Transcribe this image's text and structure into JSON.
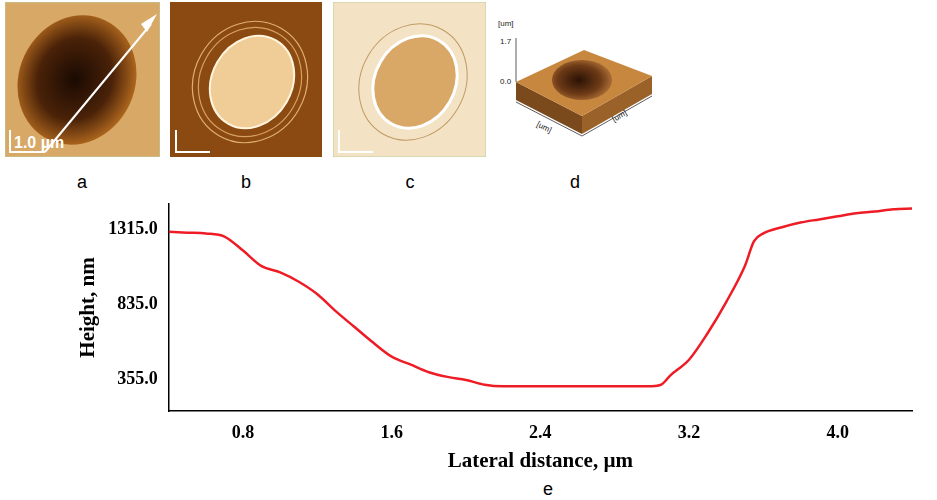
{
  "chart_data": {
    "type": "line",
    "x": [
      0.4,
      0.5,
      0.6,
      0.7,
      0.8,
      0.9,
      1.0,
      1.1,
      1.2,
      1.3,
      1.4,
      1.5,
      1.6,
      1.7,
      1.8,
      1.9,
      2.0,
      2.1,
      2.2,
      2.4,
      2.6,
      2.8,
      3.0,
      3.05,
      3.1,
      3.2,
      3.3,
      3.4,
      3.5,
      3.55,
      3.6,
      3.7,
      3.8,
      3.9,
      4.0,
      4.1,
      4.2,
      4.3,
      4.4
    ],
    "values": [
      1300,
      1295,
      1290,
      1270,
      1180,
      1080,
      1040,
      980,
      900,
      790,
      690,
      590,
      500,
      450,
      400,
      370,
      350,
      320,
      310,
      310,
      310,
      310,
      310,
      320,
      380,
      480,
      650,
      850,
      1080,
      1240,
      1290,
      1330,
      1360,
      1380,
      1400,
      1420,
      1430,
      1445,
      1450
    ],
    "color": "#ee1c25",
    "marker": "none",
    "xlabel": "Lateral distance, µm",
    "ylabel": "Height, nm",
    "xlim": [
      0.4,
      4.4
    ],
    "xticks": [
      0.8,
      1.6,
      2.4,
      3.2,
      {
        "value": 4,
        "label": "4.0"
      }
    ],
    "ylim": [
      150,
      1480
    ],
    "yticks": [
      {
        "value": 355,
        "label": "355.0"
      },
      {
        "value": 835,
        "label": "835.0"
      },
      {
        "value": 1315,
        "label": "1315.0"
      }
    ],
    "grid": false
  },
  "figure": {
    "panel_labels": [
      "a",
      "b",
      "c",
      "d",
      "e"
    ],
    "scale_bar": "1.0 µm",
    "surface_3d": {
      "z_label": "[um]",
      "z_ticks": [
        "1.7",
        "0.0"
      ],
      "x_label": "[um]",
      "y_label": "[um]"
    }
  }
}
